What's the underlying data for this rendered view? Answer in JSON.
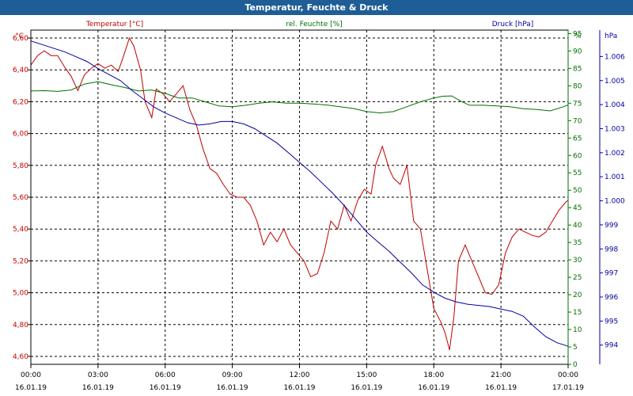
{
  "window_title": "Temperatur, Feuchte & Druck",
  "colors": {
    "temperature": "#c00000",
    "humidity": "#007000",
    "pressure": "#0000a0",
    "grid": "#000000",
    "title_bar": "#1f5d96"
  },
  "chart_data": {
    "type": "line",
    "title": "Temperatur, Feuchte & Druck",
    "x_ticks": [
      {
        "time": "00:00",
        "date": "16.01.19"
      },
      {
        "time": "03:00",
        "date": "16.01.19"
      },
      {
        "time": "06:00",
        "date": "16.01.19"
      },
      {
        "time": "09:00",
        "date": "16.01.19"
      },
      {
        "time": "12:00",
        "date": "16.01.19"
      },
      {
        "time": "15:00",
        "date": "16.01.19"
      },
      {
        "time": "18:00",
        "date": "16.01.19"
      },
      {
        "time": "21:00",
        "date": "16.01.19"
      },
      {
        "time": "00:00",
        "date": "17.01.19"
      }
    ],
    "x_unit": "hours",
    "x_range": [
      0,
      24
    ],
    "axes": {
      "temperature": {
        "label": "Temperatur [°C]",
        "unit": "°C",
        "range": [
          4.55,
          6.65
        ],
        "ticks": [
          4.6,
          4.8,
          5.0,
          5.2,
          5.4,
          5.6,
          5.8,
          6.0,
          6.2,
          6.4,
          6.6
        ],
        "tick_labels": [
          "4,60",
          "4,80",
          "5,00",
          "5,20",
          "5,40",
          "5,60",
          "5,80",
          "6,00",
          "6,20",
          "6,40",
          "6,60"
        ]
      },
      "humidity": {
        "label": "rel. Feuchte [%]",
        "unit": "%",
        "range": [
          0,
          96
        ],
        "ticks": [
          0,
          5,
          10,
          15,
          20,
          25,
          30,
          35,
          40,
          45,
          50,
          55,
          60,
          65,
          70,
          75,
          80,
          85,
          90,
          95
        ],
        "tick_labels": [
          "0",
          "5",
          "10",
          "15",
          "20",
          "25",
          "30",
          "35",
          "40",
          "45",
          "50",
          "55",
          "60",
          "65",
          "70",
          "75",
          "80",
          "85",
          "90",
          "95"
        ],
        "unit_label": "%"
      },
      "pressure": {
        "label": "Druck [hPa]",
        "unit": "hPa",
        "range": [
          993.2,
          1007.1
        ],
        "ticks": [
          994,
          995,
          996,
          997,
          998,
          999,
          1000,
          1001,
          1002,
          1003,
          1004,
          1005,
          1006
        ],
        "tick_labels": [
          "994",
          "995",
          "996",
          "997",
          "998",
          "999",
          "1.000",
          "1.001",
          "1.002",
          "1.003",
          "1.004",
          "1.005",
          "1.006"
        ],
        "unit_label": "hPa"
      }
    },
    "series": [
      {
        "name": "Temperatur [°C]",
        "axis": "temperature",
        "x": [
          0,
          0.3,
          0.6,
          0.9,
          1.2,
          1.5,
          1.8,
          2.1,
          2.4,
          2.7,
          3.0,
          3.3,
          3.6,
          3.9,
          4.1,
          4.4,
          4.6,
          4.9,
          5.1,
          5.4,
          5.6,
          5.9,
          6.2,
          6.5,
          6.8,
          7.1,
          7.4,
          7.7,
          8.0,
          8.3,
          8.6,
          8.9,
          9.2,
          9.5,
          9.8,
          10.1,
          10.4,
          10.7,
          11.0,
          11.3,
          11.6,
          11.9,
          12.2,
          12.5,
          12.8,
          13.1,
          13.4,
          13.7,
          14.0,
          14.3,
          14.6,
          14.9,
          15.2,
          15.4,
          15.7,
          16.0,
          16.2,
          16.5,
          16.8,
          17.1,
          17.4,
          17.7,
          18.0,
          18.3,
          18.5,
          18.7,
          18.9,
          19.1,
          19.4,
          19.7,
          20.0,
          20.3,
          20.6,
          20.9,
          21.2,
          21.5,
          21.8,
          22.1,
          22.4,
          22.7,
          23.0,
          23.3,
          23.6,
          23.9,
          24.0
        ],
        "values": [
          6.43,
          6.49,
          6.52,
          6.49,
          6.49,
          6.42,
          6.36,
          6.27,
          6.37,
          6.41,
          6.44,
          6.41,
          6.43,
          6.39,
          6.47,
          6.6,
          6.55,
          6.4,
          6.2,
          6.1,
          6.28,
          6.25,
          6.2,
          6.25,
          6.3,
          6.15,
          6.05,
          5.9,
          5.78,
          5.75,
          5.68,
          5.62,
          5.6,
          5.6,
          5.55,
          5.45,
          5.3,
          5.38,
          5.32,
          5.4,
          5.3,
          5.25,
          5.2,
          5.1,
          5.12,
          5.25,
          5.45,
          5.4,
          5.55,
          5.45,
          5.58,
          5.65,
          5.62,
          5.8,
          5.92,
          5.78,
          5.72,
          5.68,
          5.8,
          5.45,
          5.4,
          5.15,
          4.9,
          4.82,
          4.75,
          4.64,
          4.85,
          5.2,
          5.3,
          5.2,
          5.1,
          5.0,
          4.99,
          5.05,
          5.25,
          5.35,
          5.4,
          5.38,
          5.36,
          5.35,
          5.38,
          5.45,
          5.52,
          5.57,
          5.58
        ]
      },
      {
        "name": "rel. Feuchte [%]",
        "axis": "humidity",
        "x": [
          0,
          0.6,
          1.2,
          1.8,
          2.4,
          3.0,
          3.6,
          4.2,
          4.8,
          5.4,
          6.0,
          6.6,
          7.2,
          7.8,
          8.4,
          9.0,
          9.6,
          10.2,
          10.8,
          11.4,
          12.0,
          12.6,
          13.2,
          13.8,
          14.4,
          15.0,
          15.6,
          16.2,
          16.8,
          17.4,
          18.0,
          18.4,
          18.8,
          19.2,
          19.6,
          20.2,
          20.8,
          21.4,
          22.0,
          22.6,
          23.2,
          23.8,
          24.0
        ],
        "values": [
          78.5,
          78.6,
          78.4,
          78.8,
          80.5,
          81.2,
          80.3,
          79.5,
          78.5,
          78.8,
          77.8,
          76.5,
          76.5,
          75.4,
          74.2,
          74.0,
          74.4,
          75.0,
          75.4,
          75.0,
          75.0,
          74.8,
          74.5,
          74.0,
          73.5,
          72.6,
          72.2,
          72.6,
          74.0,
          75.4,
          76.5,
          77.0,
          77.1,
          75.6,
          74.4,
          74.4,
          74.2,
          74.0,
          73.4,
          73.2,
          72.8,
          74.0,
          74.5
        ]
      },
      {
        "name": "Druck [hPa]",
        "axis": "pressure",
        "x": [
          0,
          0.5,
          1.0,
          1.5,
          2.0,
          2.5,
          3.0,
          3.5,
          4.0,
          4.5,
          5.0,
          5.5,
          6.0,
          6.5,
          7.0,
          7.5,
          8.0,
          8.5,
          9.0,
          9.5,
          10.0,
          10.5,
          11.0,
          11.5,
          12.0,
          12.5,
          13.0,
          13.5,
          14.0,
          14.5,
          15.0,
          15.5,
          16.0,
          16.5,
          17.0,
          17.5,
          18.0,
          18.5,
          19.0,
          19.5,
          20.0,
          20.5,
          21.0,
          21.5,
          22.0,
          22.5,
          23.0,
          23.5,
          24.0
        ],
        "values": [
          1006.65,
          1006.5,
          1006.35,
          1006.2,
          1006.0,
          1005.8,
          1005.5,
          1005.25,
          1005.0,
          1004.6,
          1004.25,
          1003.9,
          1003.65,
          1003.45,
          1003.25,
          1003.15,
          1003.2,
          1003.3,
          1003.3,
          1003.2,
          1003.0,
          1002.7,
          1002.4,
          1002.0,
          1001.6,
          1001.2,
          1000.75,
          1000.3,
          999.8,
          999.25,
          998.7,
          998.3,
          997.9,
          997.45,
          997.0,
          996.5,
          996.2,
          995.95,
          995.8,
          995.7,
          995.65,
          995.6,
          995.5,
          995.4,
          995.2,
          994.75,
          994.35,
          994.1,
          993.95
        ]
      }
    ]
  }
}
